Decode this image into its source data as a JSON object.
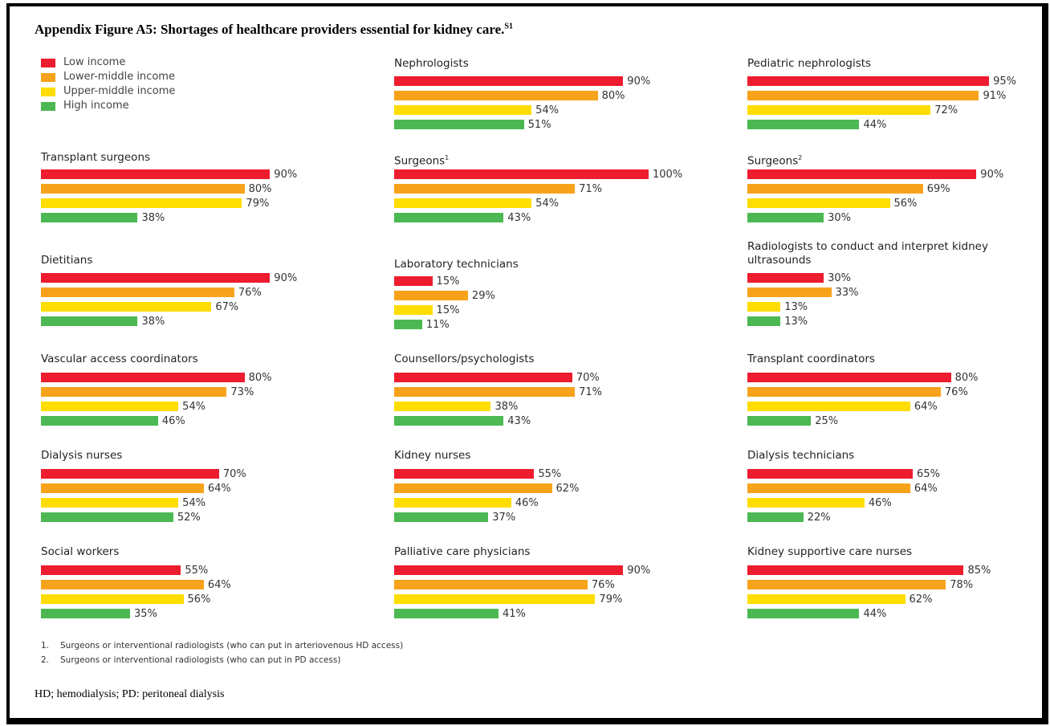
{
  "title": "Appendix Figure A5: Shortages of healthcare providers essential for kidney care.",
  "title_sup": "S1",
  "chart_data": {
    "type": "bar",
    "orientation": "horizontal",
    "unit": "%",
    "xlim": [
      0,
      100
    ],
    "grid": false,
    "legend_placement": "top-left",
    "series": [
      {
        "name": "Low income",
        "color": "#ed1c2e"
      },
      {
        "name": "Lower-middle income",
        "color": "#f7a21b"
      },
      {
        "name": "Upper-middle income",
        "color": "#ffdd00"
      },
      {
        "name": "High income",
        "color": "#4cb853"
      }
    ],
    "panels": [
      {
        "title": "Nephrologists",
        "sup": "",
        "values": [
          90,
          80,
          54,
          51
        ]
      },
      {
        "title": "Pediatric nephrologists",
        "sup": "",
        "values": [
          95,
          91,
          72,
          44
        ]
      },
      {
        "title": "Transplant surgeons",
        "sup": "",
        "values": [
          90,
          80,
          79,
          38
        ]
      },
      {
        "title": "Surgeons",
        "sup": "1",
        "values": [
          100,
          71,
          54,
          43
        ]
      },
      {
        "title": "Surgeons",
        "sup": "2",
        "values": [
          90,
          69,
          56,
          30
        ]
      },
      {
        "title": "Dietitians",
        "sup": "",
        "values": [
          90,
          76,
          67,
          38
        ]
      },
      {
        "title": "Laboratory technicians",
        "sup": "",
        "values": [
          15,
          29,
          15,
          11
        ]
      },
      {
        "title": "Radiologists to conduct and interpret kidney ultrasounds",
        "sup": "",
        "values": [
          30,
          33,
          13,
          13
        ]
      },
      {
        "title": "Vascular access coordinators",
        "sup": "",
        "values": [
          80,
          73,
          54,
          46
        ]
      },
      {
        "title": "Counsellors/psychologists",
        "sup": "",
        "values": [
          70,
          71,
          38,
          43
        ]
      },
      {
        "title": "Transplant coordinators",
        "sup": "",
        "values": [
          80,
          76,
          64,
          25
        ]
      },
      {
        "title": "Dialysis nurses",
        "sup": "",
        "values": [
          70,
          64,
          54,
          52
        ]
      },
      {
        "title": "Kidney nurses",
        "sup": "",
        "values": [
          55,
          62,
          46,
          37
        ]
      },
      {
        "title": "Dialysis technicians",
        "sup": "",
        "values": [
          65,
          64,
          46,
          22
        ]
      },
      {
        "title": "Social workers",
        "sup": "",
        "values": [
          55,
          64,
          56,
          35
        ]
      },
      {
        "title": "Palliative care physicians",
        "sup": "",
        "values": [
          90,
          76,
          79,
          41
        ]
      },
      {
        "title": "Kidney supportive care nurses",
        "sup": "",
        "values": [
          85,
          78,
          62,
          44
        ]
      }
    ]
  },
  "footnotes": [
    {
      "n": "1.",
      "text": "Surgeons or interventional radiologists (who can put in arteriovenous HD access)"
    },
    {
      "n": "2.",
      "text": "Surgeons or interventional radiologists (who can put in PD access)"
    }
  ],
  "footer": "HD; hemodialysis; PD: peritoneal dialysis"
}
